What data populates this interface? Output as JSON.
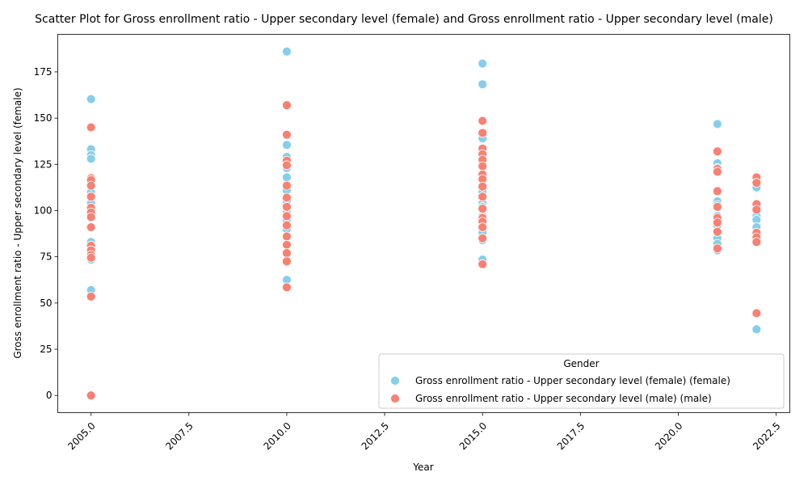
{
  "chart_data": {
    "type": "scatter",
    "title": "Scatter Plot for Gross enrollment ratio - Upper secondary level (female) and Gross enrollment ratio - Upper secondary level (male)",
    "xlabel": "Year",
    "ylabel": "Gross enrollment ratio - Upper secondary level (female)",
    "xlim": [
      2004.15,
      2022.85
    ],
    "ylim": [
      -9.3,
      195.3
    ],
    "xticks": [
      2005.0,
      2007.5,
      2010.0,
      2012.5,
      2015.0,
      2017.5,
      2020.0,
      2022.5
    ],
    "xtick_labels": [
      "2005.0",
      "2007.5",
      "2010.0",
      "2012.5",
      "2015.0",
      "2017.5",
      "2020.0",
      "2022.5"
    ],
    "yticks": [
      0,
      25,
      50,
      75,
      100,
      125,
      150,
      175
    ],
    "ytick_labels": [
      "0",
      "25",
      "50",
      "75",
      "100",
      "125",
      "150",
      "175"
    ],
    "grid": false,
    "legend": {
      "title": "Gender",
      "placement": "lower-right"
    },
    "series": [
      {
        "name": "Gross enrollment ratio - Upper secondary level (female) (female)",
        "color": "#87CEEB",
        "points": [
          [
            2005,
            160.3
          ],
          [
            2005,
            133.2
          ],
          [
            2005,
            130.0
          ],
          [
            2005,
            128.0
          ],
          [
            2005,
            118.0
          ],
          [
            2005,
            116.0
          ],
          [
            2005,
            110.0
          ],
          [
            2005,
            104.0
          ],
          [
            2005,
            100.0
          ],
          [
            2005,
            83.0
          ],
          [
            2005,
            80.0
          ],
          [
            2005,
            77.0
          ],
          [
            2005,
            73.5
          ],
          [
            2005,
            57.0
          ],
          [
            2010,
            186.0
          ],
          [
            2010,
            135.5
          ],
          [
            2010,
            129.0
          ],
          [
            2010,
            123.0
          ],
          [
            2010,
            118.0
          ],
          [
            2010,
            111.0
          ],
          [
            2010,
            105.0
          ],
          [
            2010,
            99.0
          ],
          [
            2010,
            95.0
          ],
          [
            2010,
            90.0
          ],
          [
            2010,
            86.0
          ],
          [
            2010,
            62.5
          ],
          [
            2015,
            179.5
          ],
          [
            2015,
            168.3
          ],
          [
            2015,
            139.0
          ],
          [
            2015,
            125.0
          ],
          [
            2015,
            118.0
          ],
          [
            2015,
            110.0
          ],
          [
            2015,
            104.0
          ],
          [
            2015,
            102.0
          ],
          [
            2015,
            97.0
          ],
          [
            2015,
            91.0
          ],
          [
            2015,
            88.0
          ],
          [
            2015,
            84.0
          ],
          [
            2015,
            73.5
          ],
          [
            2021,
            146.8
          ],
          [
            2021,
            125.5
          ],
          [
            2021,
            123.0
          ],
          [
            2021,
            105.0
          ],
          [
            2021,
            103.0
          ],
          [
            2021,
            97.0
          ],
          [
            2021,
            92.0
          ],
          [
            2021,
            85.0
          ],
          [
            2021,
            82.0
          ],
          [
            2021,
            78.5
          ],
          [
            2022,
            112.5
          ],
          [
            2022,
            102.0
          ],
          [
            2022,
            97.0
          ],
          [
            2022,
            95.0
          ],
          [
            2022,
            91.0
          ],
          [
            2022,
            87.0
          ],
          [
            2022,
            84.0
          ],
          [
            2022,
            35.8
          ]
        ]
      },
      {
        "name": "Gross enrollment ratio - Upper secondary level (male) (male)",
        "color": "#FA8072",
        "points": [
          [
            2005,
            145.0
          ],
          [
            2005,
            117.5
          ],
          [
            2005,
            116.5
          ],
          [
            2005,
            113.5
          ],
          [
            2005,
            107.5
          ],
          [
            2005,
            101.5
          ],
          [
            2005,
            99.0
          ],
          [
            2005,
            96.5
          ],
          [
            2005,
            91.0
          ],
          [
            2005,
            81.0
          ],
          [
            2005,
            78.5
          ],
          [
            2005,
            76.0
          ],
          [
            2005,
            74.5
          ],
          [
            2005,
            53.5
          ],
          [
            2005,
            0.0
          ],
          [
            2010,
            157.0
          ],
          [
            2010,
            141.0
          ],
          [
            2010,
            127.0
          ],
          [
            2010,
            124.5
          ],
          [
            2010,
            113.5
          ],
          [
            2010,
            107.0
          ],
          [
            2010,
            102.0
          ],
          [
            2010,
            97.0
          ],
          [
            2010,
            92.0
          ],
          [
            2010,
            86.0
          ],
          [
            2010,
            81.5
          ],
          [
            2010,
            77.0
          ],
          [
            2010,
            72.5
          ],
          [
            2010,
            58.5
          ],
          [
            2015,
            148.5
          ],
          [
            2015,
            142.0
          ],
          [
            2015,
            133.5
          ],
          [
            2015,
            130.5
          ],
          [
            2015,
            127.5
          ],
          [
            2015,
            124.0
          ],
          [
            2015,
            119.5
          ],
          [
            2015,
            117.0
          ],
          [
            2015,
            113.0
          ],
          [
            2015,
            107.5
          ],
          [
            2015,
            101.0
          ],
          [
            2015,
            96.0
          ],
          [
            2015,
            94.0
          ],
          [
            2015,
            91.0
          ],
          [
            2015,
            85.0
          ],
          [
            2015,
            71.0
          ],
          [
            2021,
            132.0
          ],
          [
            2021,
            122.5
          ],
          [
            2021,
            121.0
          ],
          [
            2021,
            110.5
          ],
          [
            2021,
            102.0
          ],
          [
            2021,
            96.0
          ],
          [
            2021,
            93.5
          ],
          [
            2021,
            88.5
          ],
          [
            2021,
            79.5
          ],
          [
            2022,
            118.0
          ],
          [
            2022,
            115.0
          ],
          [
            2022,
            103.5
          ],
          [
            2022,
            100.5
          ],
          [
            2022,
            88.0
          ],
          [
            2022,
            85.5
          ],
          [
            2022,
            83.0
          ],
          [
            2022,
            44.5
          ]
        ]
      }
    ]
  }
}
